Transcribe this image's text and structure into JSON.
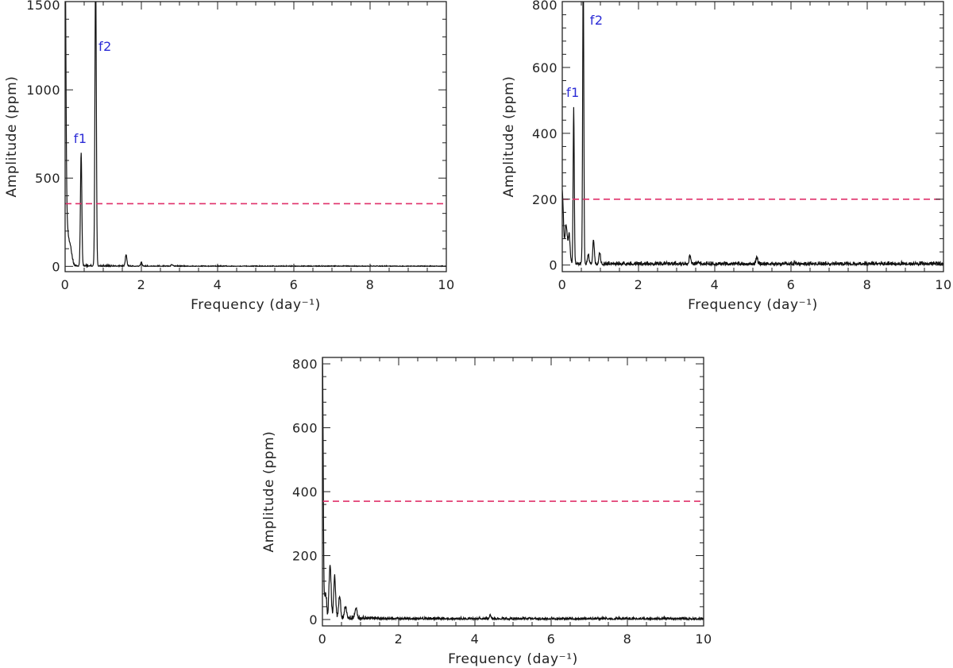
{
  "colors": {
    "signal": "#111111",
    "threshold": "#e0306a",
    "peak_label": "#2b2bd6",
    "axis": "#222222"
  },
  "chart_data": [
    {
      "type": "line",
      "xlabel": "Frequency (day⁻¹)",
      "ylabel": "Amplitude (ppm)",
      "xlim": [
        0,
        10
      ],
      "ylim": [
        -30,
        1500
      ],
      "xticks": [
        "0",
        "2",
        "4",
        "6",
        "8",
        "10"
      ],
      "yticks": [
        "0",
        "500",
        "1000",
        "1500"
      ],
      "threshold": 355,
      "annotations": [
        {
          "text": "f1",
          "x": 0.4,
          "y": 700
        },
        {
          "text": "f2",
          "x": 1.05,
          "y": 1220
        }
      ],
      "peaks": [
        {
          "x": 0.0,
          "amp": 1500,
          "w": 0.02
        },
        {
          "x": 0.02,
          "amp": 300,
          "w": 0.04
        },
        {
          "x": 0.12,
          "amp": 120,
          "w": 0.05
        },
        {
          "x": 0.42,
          "amp": 640,
          "w": 0.018
        },
        {
          "x": 0.8,
          "amp": 1700,
          "w": 0.018
        },
        {
          "x": 1.6,
          "amp": 65,
          "w": 0.02
        },
        {
          "x": 2.0,
          "amp": 20,
          "w": 0.02
        },
        {
          "x": 2.8,
          "amp": 8,
          "w": 0.02
        }
      ],
      "noise": {
        "amp": 4,
        "decay": 1.0
      }
    },
    {
      "type": "line",
      "xlabel": "Frequency (day⁻¹)",
      "ylabel": "Amplitude (ppm)",
      "xlim": [
        0,
        10
      ],
      "ylim": [
        -20,
        800
      ],
      "xticks": [
        "0",
        "2",
        "4",
        "6",
        "8",
        "10"
      ],
      "yticks": [
        "0",
        "200",
        "400",
        "600",
        "800"
      ],
      "threshold": 200,
      "annotations": [
        {
          "text": "f1",
          "x": 0.28,
          "y": 510
        },
        {
          "text": "f2",
          "x": 0.9,
          "y": 730
        }
      ],
      "peaks": [
        {
          "x": 0.0,
          "amp": 220,
          "w": 0.03
        },
        {
          "x": 0.1,
          "amp": 120,
          "w": 0.03
        },
        {
          "x": 0.18,
          "amp": 90,
          "w": 0.025
        },
        {
          "x": 0.3,
          "amp": 470,
          "w": 0.015
        },
        {
          "x": 0.55,
          "amp": 900,
          "w": 0.015
        },
        {
          "x": 0.68,
          "amp": 30,
          "w": 0.02
        },
        {
          "x": 0.82,
          "amp": 75,
          "w": 0.02
        },
        {
          "x": 0.98,
          "amp": 35,
          "w": 0.02
        },
        {
          "x": 3.35,
          "amp": 25,
          "w": 0.02
        },
        {
          "x": 5.1,
          "amp": 22,
          "w": 0.02
        }
      ],
      "noise": {
        "amp": 12,
        "decay": 0.0
      }
    },
    {
      "type": "line",
      "xlabel": "Frequency (day⁻¹)",
      "ylabel": "Amplitude (ppm)",
      "xlim": [
        0,
        10
      ],
      "ylim": [
        -20,
        820
      ],
      "xticks": [
        "0",
        "2",
        "4",
        "6",
        "8",
        "10"
      ],
      "yticks": [
        "0",
        "200",
        "400",
        "600",
        "800"
      ],
      "threshold": 370,
      "annotations": [],
      "peaks": [
        {
          "x": 0.0,
          "amp": 820,
          "w": 0.02
        },
        {
          "x": 0.08,
          "amp": 80,
          "w": 0.025
        },
        {
          "x": 0.2,
          "amp": 170,
          "w": 0.025
        },
        {
          "x": 0.32,
          "amp": 130,
          "w": 0.025
        },
        {
          "x": 0.45,
          "amp": 70,
          "w": 0.025
        },
        {
          "x": 0.6,
          "amp": 35,
          "w": 0.025
        },
        {
          "x": 0.88,
          "amp": 35,
          "w": 0.025
        },
        {
          "x": 4.4,
          "amp": 12,
          "w": 0.02
        }
      ],
      "noise": {
        "amp": 8,
        "decay": 0.6
      }
    }
  ]
}
